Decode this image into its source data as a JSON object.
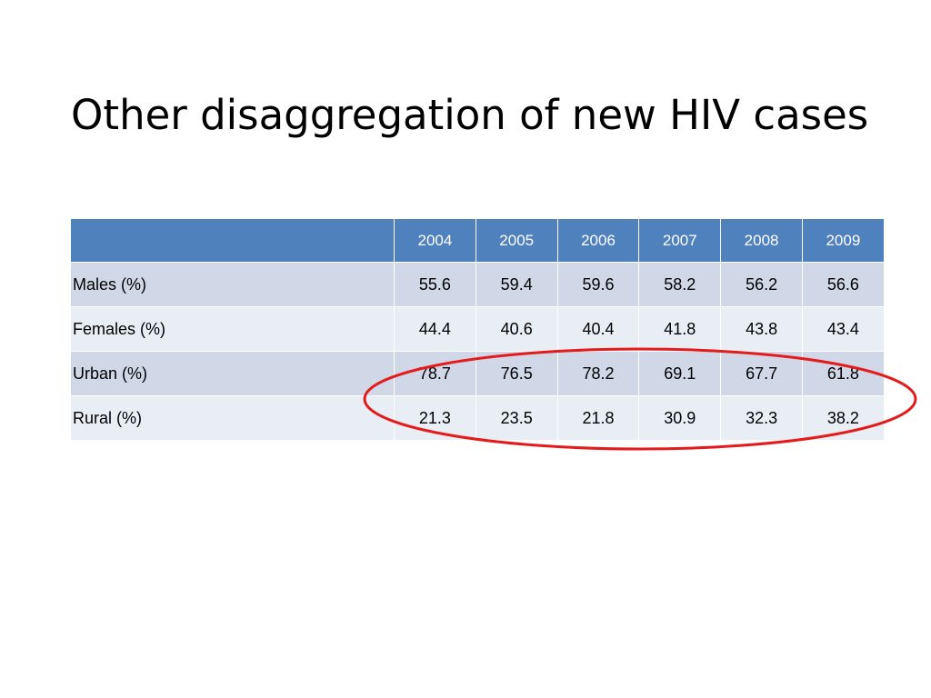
{
  "slide": {
    "title": "Other disaggregation of new HIV cases"
  },
  "table": {
    "corner_header": "",
    "years": [
      "2004",
      "2005",
      "2006",
      "2007",
      "2008",
      "2009"
    ],
    "rows": [
      {
        "label": "Males (%)",
        "values": [
          "55.6",
          "59.4",
          "59.6",
          "58.2",
          "56.2",
          "56.6"
        ]
      },
      {
        "label": "Females (%)",
        "values": [
          "44.4",
          "40.6",
          "40.4",
          "41.8",
          "43.8",
          "43.4"
        ]
      },
      {
        "label": "Urban (%)",
        "values": [
          "78.7",
          "76.5",
          "78.2",
          "69.1",
          "67.7",
          "61.8"
        ]
      },
      {
        "label": "Rural (%)",
        "values": [
          "21.3",
          "23.5",
          "21.8",
          "30.9",
          "32.3",
          "38.2"
        ]
      }
    ]
  },
  "colors": {
    "header_fill": "#4f81bd",
    "row_fill_dark": "#d0d8e8",
    "row_fill_light": "#e9edf4",
    "highlight_outline": "#e31b1b"
  },
  "annotation": {
    "shape": "ellipse-outline",
    "highlighted_rows": [
      "Urban (%)",
      "Rural (%)"
    ]
  }
}
